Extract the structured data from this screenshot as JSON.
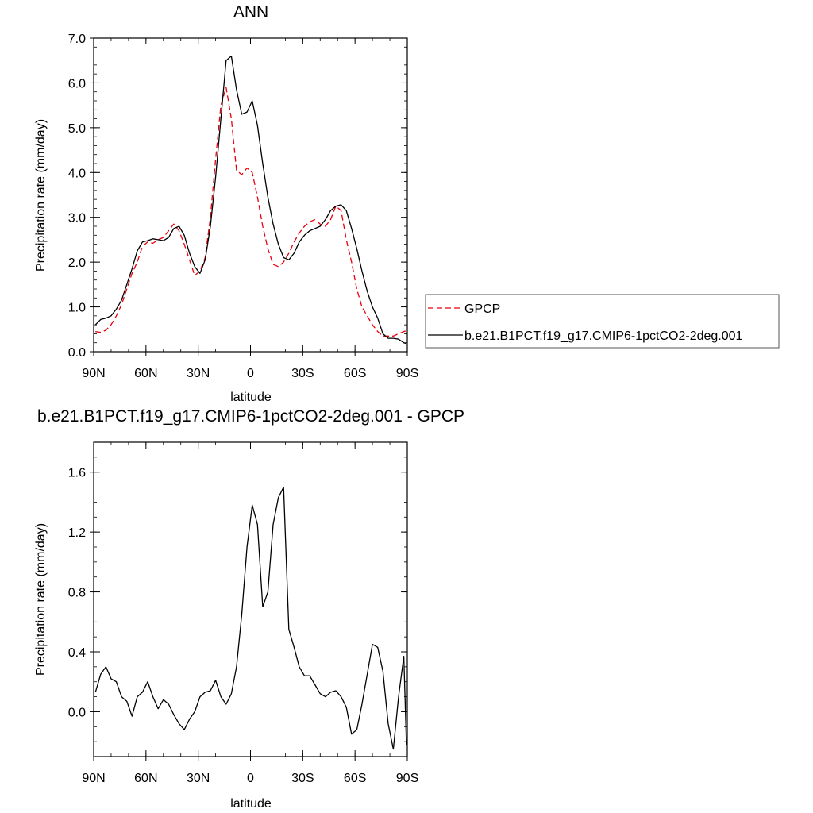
{
  "chart_data": [
    {
      "type": "line",
      "title": "ANN",
      "xlabel": "latitude",
      "ylabel": "Precipitation rate (mm/day)",
      "xlim": [
        90,
        -90
      ],
      "ylim": [
        0,
        7
      ],
      "x_ticks": [
        {
          "value": 90,
          "label": "90N"
        },
        {
          "value": 60,
          "label": "60N"
        },
        {
          "value": 30,
          "label": "30N"
        },
        {
          "value": 0,
          "label": "0"
        },
        {
          "value": -30,
          "label": "30S"
        },
        {
          "value": -60,
          "label": "60S"
        },
        {
          "value": -90,
          "label": "90S"
        }
      ],
      "y_ticks": [
        {
          "value": 0,
          "label": "0.0"
        },
        {
          "value": 1,
          "label": "1.0"
        },
        {
          "value": 2,
          "label": "2.0"
        },
        {
          "value": 3,
          "label": "3.0"
        },
        {
          "value": 4,
          "label": "4.0"
        },
        {
          "value": 5,
          "label": "5.0"
        },
        {
          "value": 6,
          "label": "6.0"
        },
        {
          "value": 7,
          "label": "7.0"
        }
      ],
      "legend": "right",
      "series": [
        {
          "name": "GPCP",
          "color": "#e8000b",
          "dash": true,
          "x": [
            89,
            86,
            83,
            80,
            77,
            74,
            71,
            68,
            65,
            62,
            59,
            56,
            53,
            50,
            47,
            44,
            41,
            38,
            35,
            32,
            29,
            26,
            23,
            20,
            17,
            14,
            11,
            8,
            5,
            2,
            -1,
            -4,
            -7,
            -10,
            -13,
            -16,
            -19,
            -22,
            -25,
            -28,
            -31,
            -34,
            -37,
            -40,
            -43,
            -46,
            -49,
            -52,
            -55,
            -58,
            -61,
            -64,
            -67,
            -70,
            -73,
            -76,
            -79,
            -82,
            -85,
            -88,
            -89.5
          ],
          "values": [
            0.45,
            0.43,
            0.48,
            0.6,
            0.8,
            1.05,
            1.4,
            1.75,
            2.0,
            2.35,
            2.45,
            2.42,
            2.5,
            2.55,
            2.7,
            2.85,
            2.7,
            2.4,
            2.05,
            1.7,
            1.8,
            2.1,
            3.0,
            4.3,
            5.5,
            5.9,
            5.2,
            4.05,
            3.95,
            4.1,
            4.0,
            3.45,
            2.8,
            2.3,
            1.95,
            1.9,
            2.0,
            2.2,
            2.45,
            2.65,
            2.8,
            2.9,
            2.95,
            2.85,
            2.8,
            2.95,
            3.25,
            3.15,
            2.5,
            2.0,
            1.4,
            1.0,
            0.8,
            0.6,
            0.45,
            0.35,
            0.35,
            0.35,
            0.4,
            0.45,
            0.47
          ]
        },
        {
          "name": "b.e21.B1PCT.f19_g17.CMIP6-1pctCO2-2deg.001",
          "color": "#000000",
          "dash": false,
          "x": [
            89,
            86,
            83,
            80,
            77,
            74,
            71,
            68,
            65,
            62,
            59,
            56,
            53,
            50,
            47,
            44,
            41,
            38,
            35,
            32,
            29,
            26,
            23,
            20,
            17,
            14,
            11,
            8,
            5,
            2,
            -1,
            -4,
            -7,
            -10,
            -13,
            -16,
            -19,
            -22,
            -25,
            -28,
            -31,
            -34,
            -37,
            -40,
            -43,
            -46,
            -49,
            -52,
            -55,
            -58,
            -61,
            -64,
            -67,
            -70,
            -73,
            -76,
            -79,
            -82,
            -85,
            -88,
            -89.5
          ],
          "values": [
            0.6,
            0.72,
            0.75,
            0.8,
            0.95,
            1.15,
            1.5,
            1.85,
            2.25,
            2.45,
            2.48,
            2.52,
            2.5,
            2.48,
            2.55,
            2.75,
            2.8,
            2.6,
            2.2,
            1.9,
            1.75,
            2.05,
            2.8,
            3.9,
            5.2,
            6.5,
            6.6,
            5.85,
            5.3,
            5.35,
            5.6,
            5.05,
            4.2,
            3.45,
            2.85,
            2.4,
            2.1,
            2.05,
            2.2,
            2.45,
            2.6,
            2.7,
            2.75,
            2.8,
            2.95,
            3.15,
            3.25,
            3.28,
            3.15,
            2.75,
            2.3,
            1.8,
            1.35,
            1.0,
            0.75,
            0.4,
            0.3,
            0.3,
            0.28,
            0.2,
            0.18
          ]
        }
      ]
    },
    {
      "type": "line",
      "title": "b.e21.B1PCT.f19_g17.CMIP6-1pctCO2-2deg.001 - GPCP",
      "xlabel": "latitude",
      "ylabel": "Precipitation rate (mm/day)",
      "xlim": [
        90,
        -90
      ],
      "ylim": [
        -0.3,
        1.8
      ],
      "x_ticks": [
        {
          "value": 90,
          "label": "90N"
        },
        {
          "value": 60,
          "label": "60N"
        },
        {
          "value": 30,
          "label": "30N"
        },
        {
          "value": 0,
          "label": "0"
        },
        {
          "value": -30,
          "label": "30S"
        },
        {
          "value": -60,
          "label": "60S"
        },
        {
          "value": -90,
          "label": "90S"
        }
      ],
      "y_ticks": [
        {
          "value": 0.0,
          "label": "0.0"
        },
        {
          "value": 0.4,
          "label": "0.4"
        },
        {
          "value": 0.8,
          "label": "0.8"
        },
        {
          "value": 1.2,
          "label": "1.2"
        },
        {
          "value": 1.6,
          "label": "1.6"
        }
      ],
      "series": [
        {
          "color": "#000000",
          "dash": false,
          "x": [
            89,
            86,
            83,
            80,
            77,
            74,
            71,
            68,
            65,
            62,
            59,
            56,
            53,
            50,
            47,
            44,
            41,
            38,
            35,
            32,
            29,
            26,
            23,
            20,
            17,
            14,
            11,
            8,
            5,
            2,
            -1,
            -4,
            -7,
            -10,
            -13,
            -16,
            -19,
            -22,
            -25,
            -28,
            -31,
            -34,
            -37,
            -40,
            -43,
            -46,
            -49,
            -52,
            -55,
            -58,
            -61,
            -64,
            -67,
            -70,
            -73,
            -76,
            -79,
            -82,
            -85,
            -88,
            -89.5
          ],
          "values": [
            0.13,
            0.25,
            0.3,
            0.22,
            0.2,
            0.1,
            0.07,
            -0.03,
            0.1,
            0.13,
            0.2,
            0.1,
            0.02,
            0.08,
            0.05,
            -0.02,
            -0.08,
            -0.12,
            -0.05,
            0.0,
            0.1,
            0.13,
            0.14,
            0.21,
            0.1,
            0.05,
            0.12,
            0.3,
            0.65,
            1.1,
            1.38,
            1.25,
            0.7,
            0.8,
            1.25,
            1.43,
            1.5,
            0.55,
            0.43,
            0.3,
            0.24,
            0.24,
            0.18,
            0.12,
            0.1,
            0.13,
            0.14,
            0.1,
            0.03,
            -0.15,
            -0.12,
            0.05,
            0.25,
            0.45,
            0.43,
            0.27,
            -0.08,
            -0.25,
            0.1,
            0.37,
            -0.22
          ]
        }
      ]
    }
  ]
}
